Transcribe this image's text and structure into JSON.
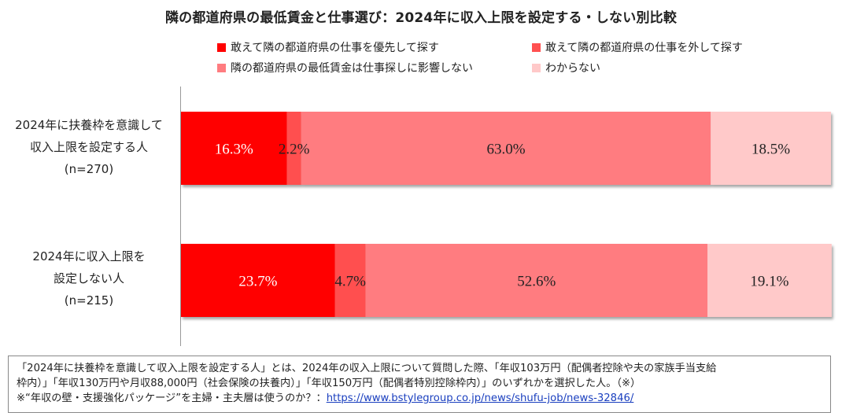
{
  "chart_data": {
    "type": "bar",
    "stacked": true,
    "orientation": "horizontal",
    "percent_stacked": true,
    "title": "隣の都道府県の最低賃金と仕事選び：2024年に収入上限を設定する・しない別比較",
    "categories": [
      [
        "2024年に扶養枠を意識して",
        "収入上限を設定する人",
        "(n=270)"
      ],
      [
        "2024年に収入上限を",
        "設定しない人",
        "(n=215)"
      ]
    ],
    "series": [
      {
        "name": "敢えて隣の都道府県の仕事を優先して探す",
        "color": "#ff0000",
        "values": [
          16.3,
          23.7
        ],
        "labels": [
          "16.3%",
          "23.7%"
        ],
        "label_color": "#ffffff"
      },
      {
        "name": "敢えて隣の都道府県の仕事を外して探す",
        "color": "#ff5050",
        "values": [
          2.2,
          4.7
        ],
        "labels": [
          "2.2%",
          "4.7%"
        ],
        "label_color": "#222222"
      },
      {
        "name": "隣の都道府県の最低賃金は仕事探しに影響しない",
        "color": "#ff7c80",
        "values": [
          63.0,
          52.6
        ],
        "labels": [
          "63.0%",
          "52.6%"
        ],
        "label_color": "#222222"
      },
      {
        "name": "わからない",
        "color": "#ffc9c9",
        "values": [
          18.5,
          19.1
        ],
        "labels": [
          "18.5%",
          "19.1%"
        ],
        "label_color": "#222222"
      }
    ],
    "xlim": [
      0,
      100
    ],
    "legend_position": "top",
    "grid": false
  },
  "note": {
    "line1": "「2024年に扶養枠を意識して収入上限を設定する人」とは、2024年の収入上限について質問した際、「年収103万円（配偶者控除や夫の家族手当支給",
    "line2": "枠内）」「年収130万円や月収88,000円（社会保険の扶養内）」「年収150万円（配偶者特別控除枠内）」のいずれかを選択した人。（※）",
    "line3_prefix": "※“年収の壁・支援強化パッケージ”を主婦・主夫層は使うのか？：",
    "line3_link": "https://www.bstylegroup.co.jp/news/shufu-job/news-32846/"
  }
}
